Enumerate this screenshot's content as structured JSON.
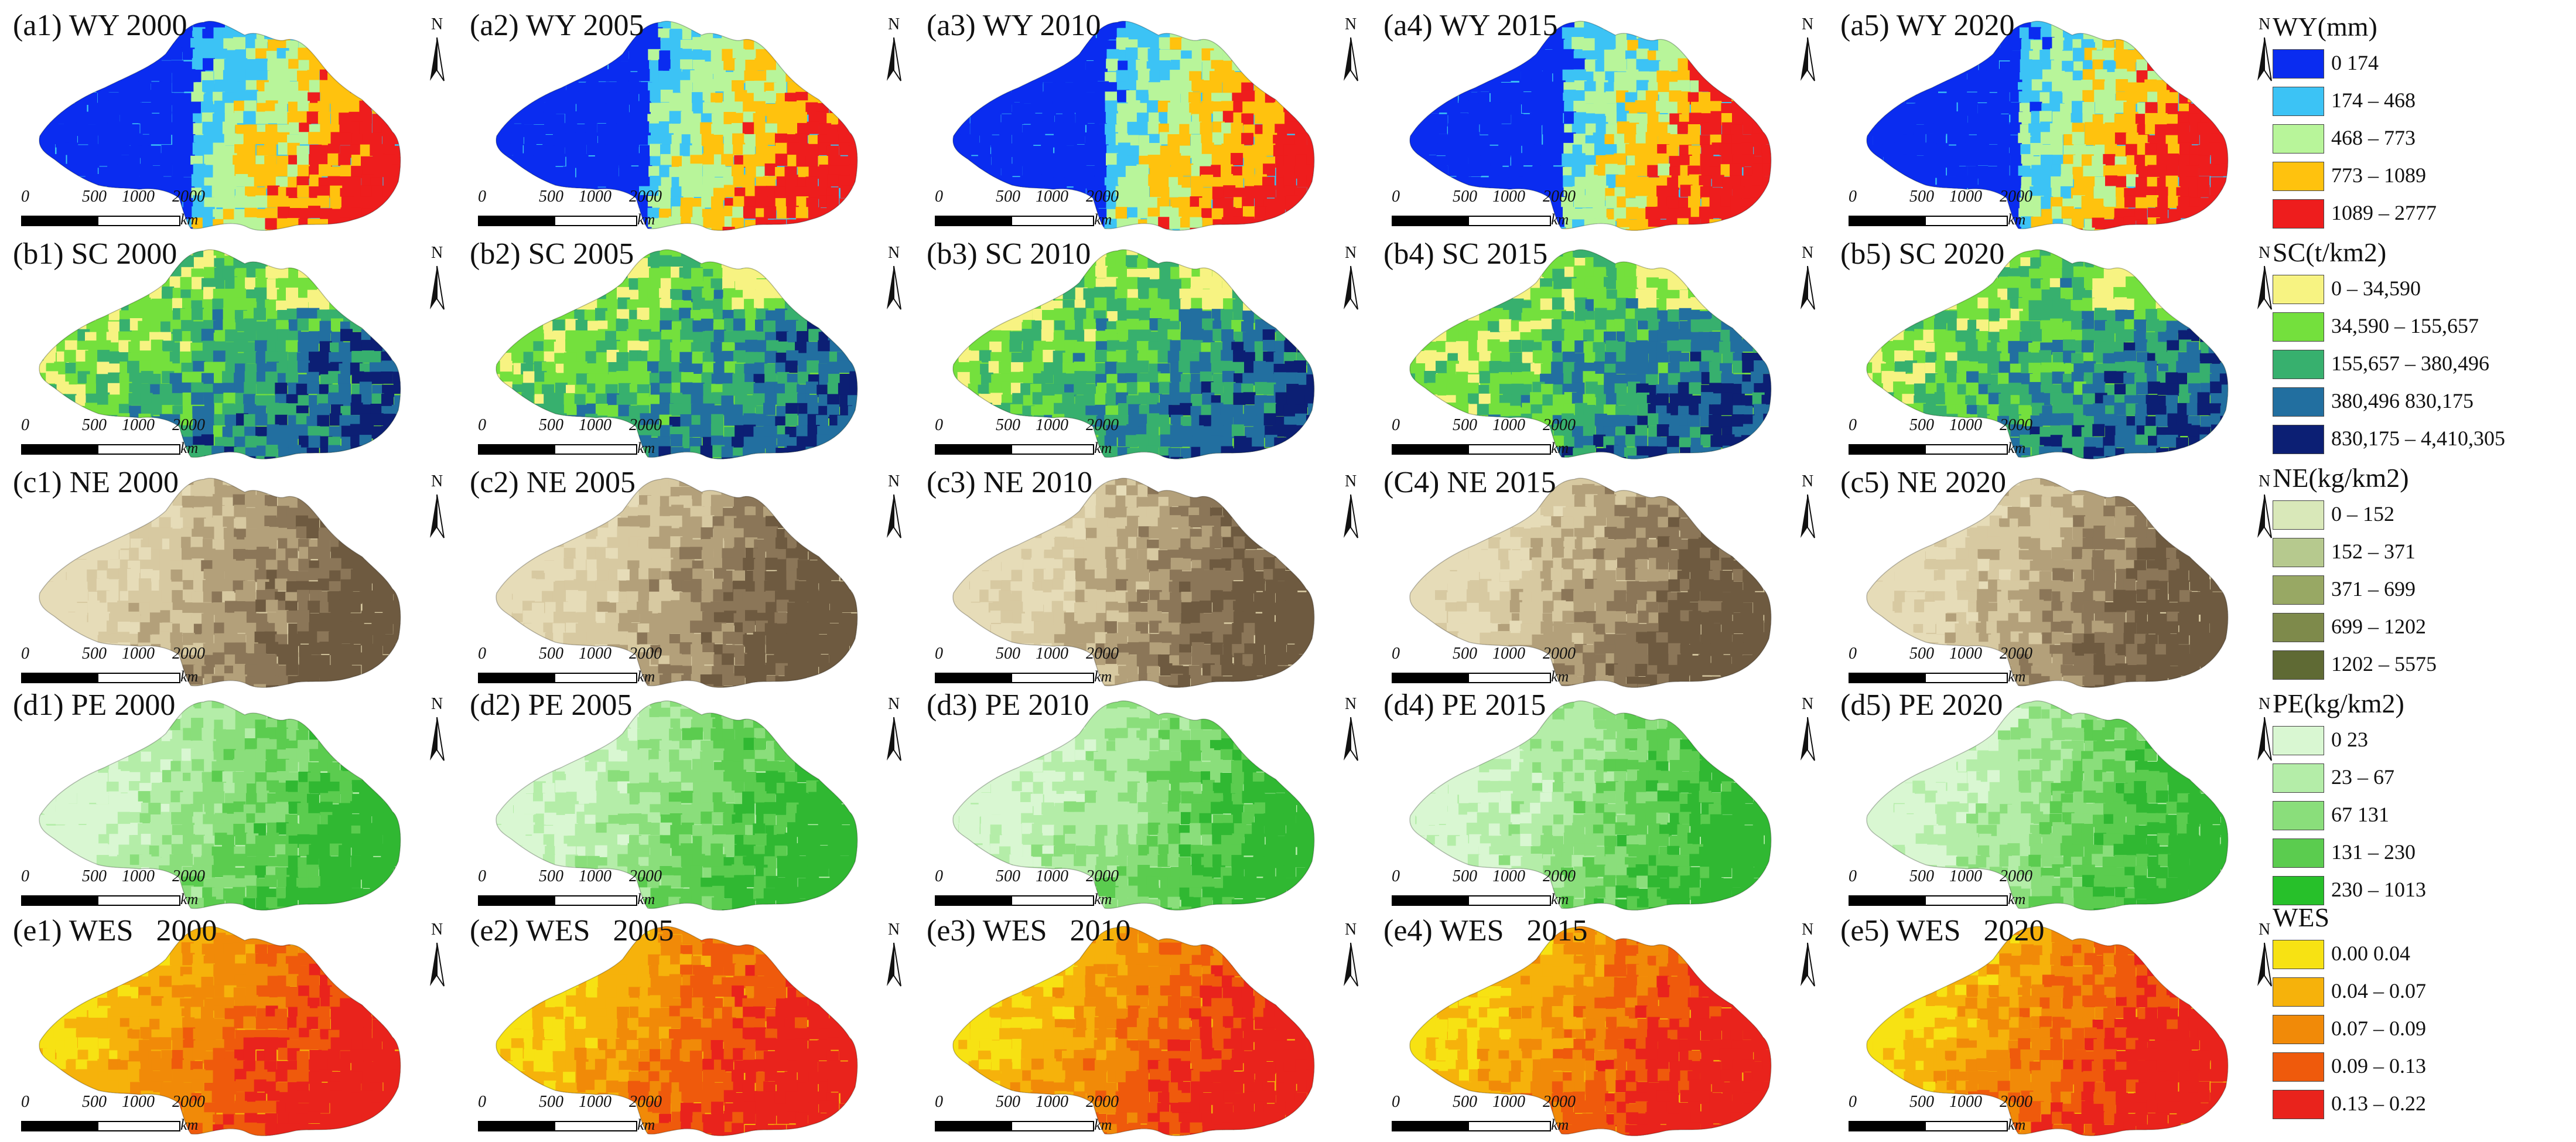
{
  "scale_bar": {
    "ticks": [
      "0",
      "500",
      "1000",
      "2000"
    ],
    "unit": "km"
  },
  "north_letter": "N",
  "rows": [
    {
      "id": "wy",
      "panels": [
        "(a1) WY 2000",
        "(a2) WY 2005",
        "(a3) WY 2010",
        "(a4) WY 2015",
        "(a5) WY 2020"
      ],
      "palette": [
        "#0a2cf0",
        "#3cc3f5",
        "#b8f59a",
        "#ffc20e",
        "#ee1d1d"
      ],
      "intensity": [
        0.6,
        0.62,
        0.6,
        0.64,
        0.62
      ]
    },
    {
      "id": "sc",
      "panels": [
        "(b1) SC 2000",
        "(b2) SC 2005",
        "(b3) SC 2010",
        "(b4) SC 2015",
        "(b5) SC 2020"
      ],
      "palette": [
        "#f7f382",
        "#74e03d",
        "#37b06e",
        "#226fa0",
        "#0c1f74"
      ],
      "intensity": [
        0.62,
        0.62,
        0.62,
        0.62,
        0.62
      ]
    },
    {
      "id": "ne",
      "panels": [
        "(c1) NE 2000",
        "(c2) NE 2005",
        "(c3) NE 2010",
        "(C4) NE 2015",
        "(c5) NE 2020"
      ],
      "palette": [
        "#e6dcb8",
        "#d7c9a1",
        "#b3a07a",
        "#8b7658",
        "#6e5a40"
      ],
      "intensity": [
        0.58,
        0.58,
        0.58,
        0.58,
        0.58
      ]
    },
    {
      "id": "pe",
      "panels": [
        "(d1) PE 2000",
        "(d2) PE 2005",
        "(d3) PE 2010",
        "(d4) PE 2015",
        "(d5) PE 2020"
      ],
      "palette": [
        "#d9f7d2",
        "#b4eda8",
        "#8ade7b",
        "#5bcc4f",
        "#30b832"
      ],
      "intensity": [
        0.55,
        0.55,
        0.55,
        0.55,
        0.55
      ]
    },
    {
      "id": "wes",
      "panels": [
        "(e1) WES   2000",
        "(e2) WES   2005",
        "(e3) WES   2010",
        "(e4) WES   2015",
        "(e5) WES   2020"
      ],
      "palette": [
        "#f7e213",
        "#f6b20b",
        "#f18a08",
        "#ef5a0c",
        "#e9231c"
      ],
      "intensity": [
        0.62,
        0.63,
        0.63,
        0.63,
        0.64
      ]
    }
  ],
  "legends": [
    {
      "title": "WY(mm)",
      "items": [
        {
          "label": "0    174",
          "color": "#0a2cf0"
        },
        {
          "label": "174 – 468",
          "color": "#3cc3f5"
        },
        {
          "label": "468 – 773",
          "color": "#b8f59a"
        },
        {
          "label": "773 – 1089",
          "color": "#ffc20e"
        },
        {
          "label": "1089 – 2777",
          "color": "#ee1d1d"
        }
      ]
    },
    {
      "title": "SC(t/km2)",
      "items": [
        {
          "label": "0 – 34,590",
          "color": "#f7f382"
        },
        {
          "label": "34,590 – 155,657",
          "color": "#74e03d"
        },
        {
          "label": "155,657 – 380,496",
          "color": "#37b06e"
        },
        {
          "label": "380,496    830,175",
          "color": "#226fa0"
        },
        {
          "label": "830,175 – 4,410,305",
          "color": "#0c1f74"
        }
      ]
    },
    {
      "title": "NE(kg/km2)",
      "items": [
        {
          "label": "0 – 152",
          "color": "#d9e8b9"
        },
        {
          "label": "152 – 371",
          "color": "#b6c98e"
        },
        {
          "label": "371 – 699",
          "color": "#98a864"
        },
        {
          "label": "699 – 1202",
          "color": "#7e8a4b"
        },
        {
          "label": "1202 – 5575",
          "color": "#5f6a34"
        }
      ]
    },
    {
      "title": "PE(kg/km2)",
      "items": [
        {
          "label": "0    23",
          "color": "#d9f7d2"
        },
        {
          "label": "23 – 67",
          "color": "#b4eda8"
        },
        {
          "label": "67    131",
          "color": "#8ade7b"
        },
        {
          "label": "131 – 230",
          "color": "#5bcc4f"
        },
        {
          "label": "230 – 1013",
          "color": "#27c02a"
        }
      ]
    },
    {
      "title": "WES",
      "items": [
        {
          "label": "0.00    0.04",
          "color": "#f7e213"
        },
        {
          "label": "0.04 – 0.07",
          "color": "#f6b20b"
        },
        {
          "label": "0.07 – 0.09",
          "color": "#f18a08"
        },
        {
          "label": "0.09 – 0.13",
          "color": "#ef5a0c"
        },
        {
          "label": "0.13 – 0.22",
          "color": "#e9231c"
        }
      ]
    }
  ]
}
